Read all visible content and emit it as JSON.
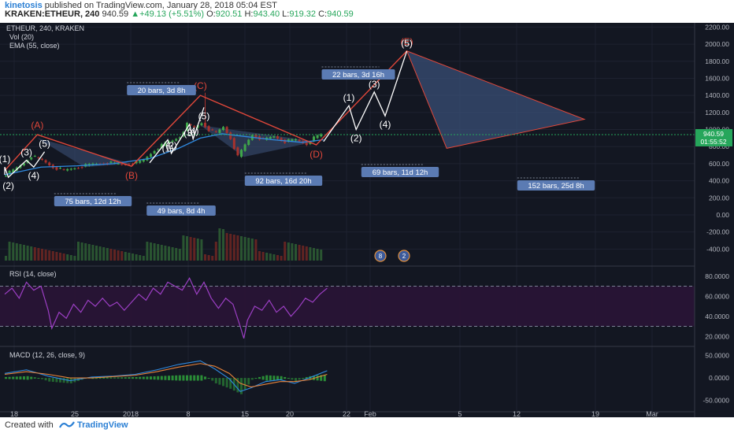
{
  "header": {
    "author": "kinetosis",
    "published_text": " published on TradingView.com, January 28, 2018 05:04 EST",
    "symbol": "KRAKEN:ETHEUR, 240",
    "last": "940.59",
    "change": "+49.13 (+5.51%)",
    "open_label": "O:",
    "open": "920.51",
    "high_label": "H:",
    "high": "943.40",
    "low_label": "L:",
    "low": "919.32",
    "close_label": "C:",
    "close": "940.59"
  },
  "legend": {
    "title": "ETHEUR, 240, KRAKEN",
    "vol": "Vol (20)",
    "ema": "EMA (55, close)"
  },
  "footer": {
    "created": "Created with",
    "brand": "TradingView"
  },
  "colors": {
    "background": "#131722",
    "wave_red": "#e0473a",
    "wave_white": "#ffffff",
    "triangle_fill": "#3a4f75",
    "label_blue": "#5b7bb3",
    "rsi_purple": "#9c3fc4",
    "ema_blue": "#2f8ae0",
    "candle_green": "#3fa64a",
    "candle_red": "#a8322d",
    "price_line": "#26a65b"
  },
  "chart_data": {
    "type": "candlestick",
    "symbol": "ETHEUR",
    "interval": "240",
    "exchange": "KRAKEN",
    "x_ticks": [
      "18",
      "25",
      "2018",
      "8",
      "15",
      "20",
      "22",
      "Feb",
      "5",
      "12",
      "19",
      "Mar",
      "8"
    ],
    "price_axis": {
      "ticks": [
        "2200.00",
        "2000.00",
        "1800.00",
        "1600.00",
        "1400.00",
        "1200.00",
        "1000.00",
        "800.00",
        "600.00",
        "400.00",
        "200.00",
        "0.00",
        "-200.00",
        "-400.00",
        "-600.00"
      ],
      "ylim": [
        -600,
        2250
      ],
      "last_price": "940.59",
      "countdown": "01:55:52"
    },
    "price_series": [
      {
        "t": 0,
        "p": 455
      },
      {
        "t": 3,
        "p": 520
      },
      {
        "t": 6,
        "p": 610
      },
      {
        "t": 8,
        "p": 690
      },
      {
        "t": 11,
        "p": 640
      },
      {
        "t": 14,
        "p": 560
      },
      {
        "t": 17,
        "p": 520
      },
      {
        "t": 21,
        "p": 560
      },
      {
        "t": 25,
        "p": 595
      },
      {
        "t": 29,
        "p": 610
      },
      {
        "t": 33,
        "p": 590
      },
      {
        "t": 37,
        "p": 610
      },
      {
        "t": 39,
        "p": 640
      },
      {
        "t": 42,
        "p": 760
      },
      {
        "t": 45,
        "p": 840
      },
      {
        "t": 47,
        "p": 870
      },
      {
        "t": 49,
        "p": 920
      },
      {
        "t": 51,
        "p": 1060
      },
      {
        "t": 53,
        "p": 1020
      },
      {
        "t": 55,
        "p": 1080
      },
      {
        "t": 57,
        "p": 1000
      },
      {
        "t": 59,
        "p": 960
      },
      {
        "t": 61,
        "p": 1030
      },
      {
        "t": 63,
        "p": 900
      },
      {
        "t": 65,
        "p": 680
      },
      {
        "t": 67,
        "p": 820
      },
      {
        "t": 69,
        "p": 940
      },
      {
        "t": 72,
        "p": 880
      },
      {
        "t": 75,
        "p": 920
      },
      {
        "t": 78,
        "p": 860
      },
      {
        "t": 81,
        "p": 880
      },
      {
        "t": 84,
        "p": 830
      },
      {
        "t": 86,
        "p": 900
      },
      {
        "t": 88,
        "p": 940
      }
    ],
    "ema_series": [
      {
        "t": 0,
        "p": 470
      },
      {
        "t": 10,
        "p": 560
      },
      {
        "t": 20,
        "p": 575
      },
      {
        "t": 30,
        "p": 600
      },
      {
        "t": 40,
        "p": 660
      },
      {
        "t": 48,
        "p": 780
      },
      {
        "t": 54,
        "p": 900
      },
      {
        "t": 60,
        "p": 950
      },
      {
        "t": 66,
        "p": 920
      },
      {
        "t": 74,
        "p": 880
      },
      {
        "t": 82,
        "p": 850
      },
      {
        "t": 88,
        "p": 880
      }
    ],
    "red_waves": [
      {
        "label": "(A)",
        "t": 9,
        "p": 940
      },
      {
        "label": "(B)",
        "t": 35,
        "p": 570
      },
      {
        "label": "(C)",
        "t": 54,
        "p": 1400
      },
      {
        "label": "(D)",
        "t": 86,
        "p": 820
      },
      {
        "label": "(E)",
        "t": 111,
        "p": 1920
      }
    ],
    "white_waves": [
      {
        "label": "(1)",
        "t": 0,
        "p": 560
      },
      {
        "label": "(2)",
        "t": 1,
        "p": 440
      },
      {
        "label": "(3)",
        "t": 6,
        "p": 640
      },
      {
        "label": "(4)",
        "t": 8,
        "p": 560
      },
      {
        "label": "(5)",
        "t": 11,
        "p": 740
      },
      {
        "label": "(1)",
        "t": 45,
        "p": 880
      },
      {
        "label": "(2)",
        "t": 46,
        "p": 720
      },
      {
        "label": "(3)",
        "t": 51,
        "p": 1060
      },
      {
        "label": "(4)",
        "t": 52,
        "p": 890
      },
      {
        "label": "(5)",
        "t": 55,
        "p": 1260
      },
      {
        "label": "(1)",
        "t": 95,
        "p": 1280
      },
      {
        "label": "(2)",
        "t": 97,
        "p": 1000
      },
      {
        "label": "(3)",
        "t": 102,
        "p": 1440
      },
      {
        "label": "(4)",
        "t": 105,
        "p": 1160
      },
      {
        "label": "(5)",
        "t": 111,
        "p": 1920
      }
    ],
    "triangle_projection": [
      {
        "t": 111,
        "p": 1920
      },
      {
        "t": 160,
        "p": 1120
      },
      {
        "t": 122,
        "p": 780
      }
    ],
    "bar_count_labels": [
      {
        "text": "20 bars, 3d 8h"
      },
      {
        "text": "75 bars, 12d 12h"
      },
      {
        "text": "49 bars, 8d 4h"
      },
      {
        "text": "92 bars, 16d 20h"
      },
      {
        "text": "22 bars, 3d 16h"
      },
      {
        "text": "69 bars, 11d 12h"
      },
      {
        "text": "152 bars, 25d 8h"
      }
    ],
    "event_badges": [
      "8",
      "2"
    ],
    "rsi": {
      "label": "RSI (14, close)",
      "ticks": [
        "80.0000",
        "60.0000",
        "40.0000",
        "20.0000"
      ],
      "upper_band": 70,
      "lower_band": 30,
      "series": [
        {
          "t": 0,
          "v": 62
        },
        {
          "t": 2,
          "v": 68
        },
        {
          "t": 4,
          "v": 58
        },
        {
          "t": 6,
          "v": 74
        },
        {
          "t": 8,
          "v": 66
        },
        {
          "t": 10,
          "v": 70
        },
        {
          "t": 12,
          "v": 46
        },
        {
          "t": 13,
          "v": 28
        },
        {
          "t": 15,
          "v": 44
        },
        {
          "t": 17,
          "v": 38
        },
        {
          "t": 19,
          "v": 52
        },
        {
          "t": 21,
          "v": 44
        },
        {
          "t": 23,
          "v": 56
        },
        {
          "t": 25,
          "v": 50
        },
        {
          "t": 27,
          "v": 58
        },
        {
          "t": 29,
          "v": 50
        },
        {
          "t": 31,
          "v": 54
        },
        {
          "t": 33,
          "v": 46
        },
        {
          "t": 35,
          "v": 54
        },
        {
          "t": 37,
          "v": 62
        },
        {
          "t": 39,
          "v": 56
        },
        {
          "t": 41,
          "v": 68
        },
        {
          "t": 43,
          "v": 62
        },
        {
          "t": 45,
          "v": 74
        },
        {
          "t": 47,
          "v": 70
        },
        {
          "t": 49,
          "v": 66
        },
        {
          "t": 51,
          "v": 78
        },
        {
          "t": 53,
          "v": 62
        },
        {
          "t": 55,
          "v": 74
        },
        {
          "t": 57,
          "v": 58
        },
        {
          "t": 59,
          "v": 48
        },
        {
          "t": 61,
          "v": 58
        },
        {
          "t": 63,
          "v": 52
        },
        {
          "t": 65,
          "v": 30
        },
        {
          "t": 66,
          "v": 18
        },
        {
          "t": 67,
          "v": 36
        },
        {
          "t": 69,
          "v": 50
        },
        {
          "t": 71,
          "v": 46
        },
        {
          "t": 73,
          "v": 56
        },
        {
          "t": 75,
          "v": 44
        },
        {
          "t": 77,
          "v": 50
        },
        {
          "t": 79,
          "v": 40
        },
        {
          "t": 81,
          "v": 48
        },
        {
          "t": 83,
          "v": 58
        },
        {
          "t": 85,
          "v": 54
        },
        {
          "t": 87,
          "v": 62
        },
        {
          "t": 89,
          "v": 68
        }
      ]
    },
    "macd": {
      "label": "MACD (12, 26, close, 9)",
      "ticks": [
        "50.0000",
        "0.0000",
        "-50.0000"
      ],
      "macd_series": [
        {
          "t": 0,
          "v": 10
        },
        {
          "t": 6,
          "v": 18
        },
        {
          "t": 12,
          "v": 4
        },
        {
          "t": 18,
          "v": -6
        },
        {
          "t": 24,
          "v": 2
        },
        {
          "t": 30,
          "v": 4
        },
        {
          "t": 36,
          "v": 8
        },
        {
          "t": 42,
          "v": 18
        },
        {
          "t": 48,
          "v": 30
        },
        {
          "t": 54,
          "v": 38
        },
        {
          "t": 58,
          "v": 20
        },
        {
          "t": 62,
          "v": -2
        },
        {
          "t": 65,
          "v": -30
        },
        {
          "t": 68,
          "v": -22
        },
        {
          "t": 72,
          "v": -8
        },
        {
          "t": 76,
          "v": -4
        },
        {
          "t": 80,
          "v": -12
        },
        {
          "t": 84,
          "v": 0
        },
        {
          "t": 89,
          "v": 16
        }
      ],
      "signal_series": [
        {
          "t": 0,
          "v": 8
        },
        {
          "t": 6,
          "v": 14
        },
        {
          "t": 12,
          "v": 8
        },
        {
          "t": 18,
          "v": 0
        },
        {
          "t": 24,
          "v": 0
        },
        {
          "t": 30,
          "v": 3
        },
        {
          "t": 36,
          "v": 6
        },
        {
          "t": 42,
          "v": 14
        },
        {
          "t": 48,
          "v": 24
        },
        {
          "t": 54,
          "v": 32
        },
        {
          "t": 58,
          "v": 26
        },
        {
          "t": 62,
          "v": 10
        },
        {
          "t": 65,
          "v": -12
        },
        {
          "t": 68,
          "v": -20
        },
        {
          "t": 72,
          "v": -14
        },
        {
          "t": 76,
          "v": -8
        },
        {
          "t": 80,
          "v": -8
        },
        {
          "t": 84,
          "v": -4
        },
        {
          "t": 89,
          "v": 8
        }
      ]
    }
  }
}
